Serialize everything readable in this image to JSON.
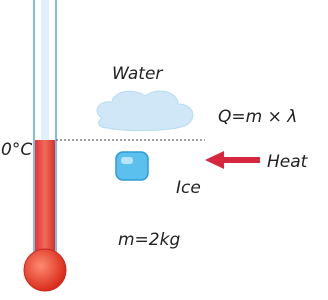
{
  "labels": {
    "water": "Water",
    "formula": "Q=m × λ",
    "temperature": "0°C",
    "heat": "Heat",
    "ice": "Ice",
    "mass": "m=2kg"
  }
}
